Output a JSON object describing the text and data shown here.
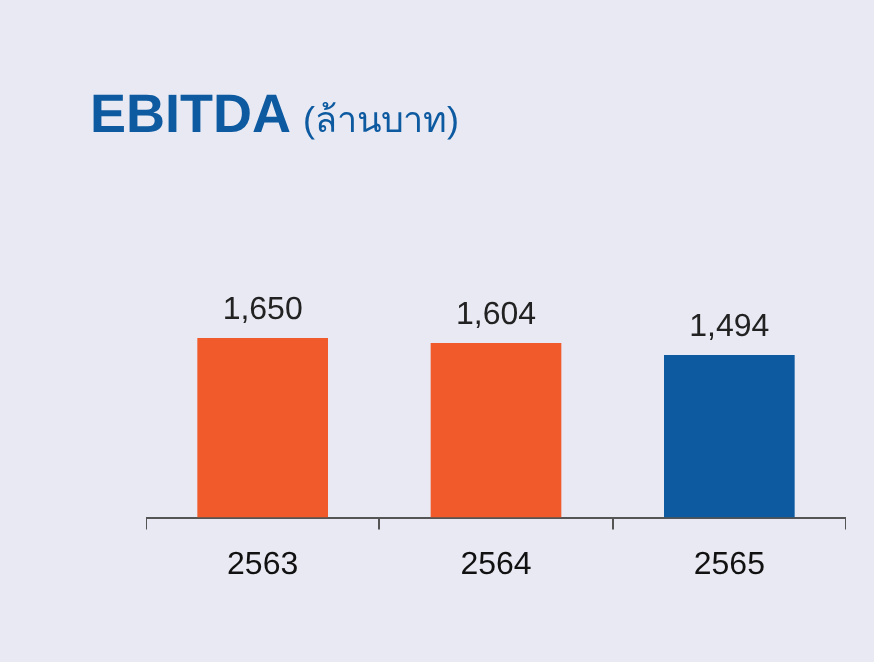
{
  "chart_data": {
    "type": "bar",
    "title": "EBITDA",
    "subtitle": "(ล้านบาท)",
    "categories": [
      "2563",
      "2564",
      "2565"
    ],
    "values": [
      1650,
      1604,
      1494
    ],
    "colors": [
      "#f15a2b",
      "#f15a2b",
      "#0d5aa0"
    ],
    "value_labels": [
      "1,650",
      "1,604",
      "1,494"
    ]
  }
}
